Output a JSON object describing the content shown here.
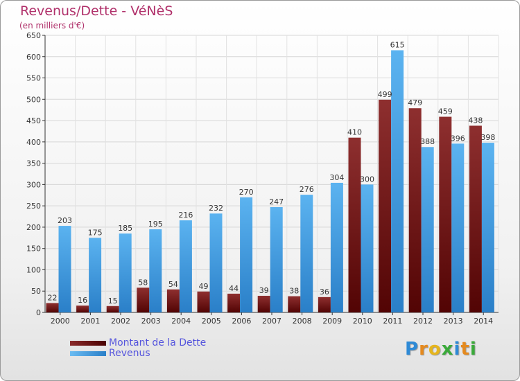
{
  "header": {
    "title": "Revenus/Dette - VéNèS",
    "subtitle": "(en milliers d'€)"
  },
  "legend": {
    "items": [
      {
        "label": "Montant de la Dette",
        "color": "#6b1010"
      },
      {
        "label": "Revenus",
        "color": "#4ea6ea"
      }
    ]
  },
  "logo": {
    "letters": [
      "P",
      "r",
      "o",
      "x",
      "i",
      "t",
      "i"
    ],
    "colors": [
      "#2e8ad6",
      "#e58a1e",
      "#e5b51e",
      "#3aaa3a",
      "#2e8ad6",
      "#e58a1e",
      "#3aaa3a"
    ]
  },
  "chart_data": {
    "type": "bar",
    "title": "Revenus/Dette - VéNèS",
    "subtitle": "(en milliers d'€)",
    "categories": [
      "2000",
      "2001",
      "2002",
      "2003",
      "2004",
      "2005",
      "2006",
      "2007",
      "2008",
      "2009",
      "2010",
      "2011",
      "2012",
      "2013",
      "2014"
    ],
    "series": [
      {
        "name": "Montant de la Dette",
        "color": "#7a1e1e",
        "values": [
          22,
          16,
          15,
          58,
          54,
          49,
          44,
          39,
          38,
          36,
          410,
          499,
          479,
          459,
          438
        ]
      },
      {
        "name": "Revenus",
        "color": "#4ea6ea",
        "values": [
          203,
          175,
          185,
          195,
          216,
          232,
          270,
          247,
          276,
          304,
          300,
          615,
          388,
          396,
          398
        ]
      }
    ],
    "ylim": [
      0,
      650
    ],
    "yticks": [
      0,
      50,
      100,
      150,
      200,
      250,
      300,
      350,
      400,
      450,
      500,
      550,
      600,
      650
    ],
    "grid": true,
    "legend_position": "bottom-left"
  }
}
